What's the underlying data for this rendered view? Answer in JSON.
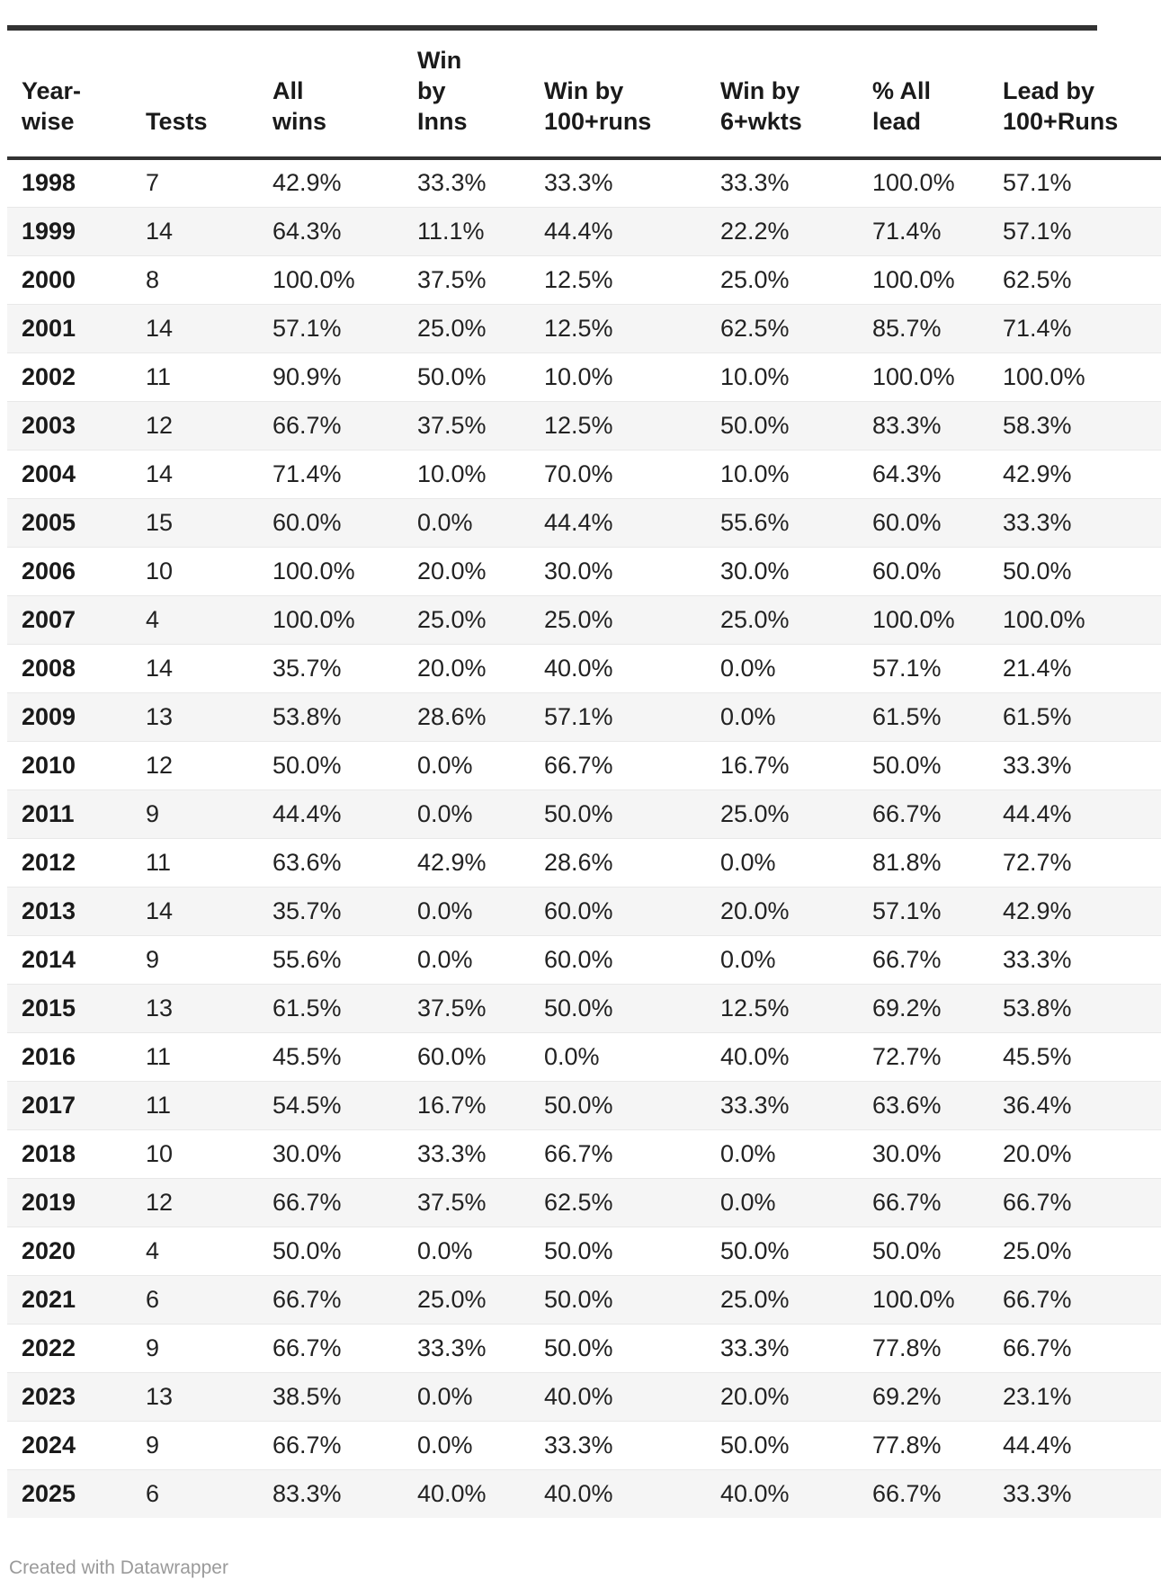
{
  "chart_data": {
    "type": "table",
    "columns": [
      "Year-\nwise",
      "Tests",
      "All\nwins",
      "Win\nby\nInns",
      "Win by\n100+runs",
      "Win by\n6+wkts",
      "% All\nlead",
      "Lead by\n100+Runs"
    ],
    "rows": [
      {
        "year": "1998",
        "values": [
          "7",
          "42.9%",
          "33.3%",
          "33.3%",
          "33.3%",
          "100.0%",
          "57.1%"
        ]
      },
      {
        "year": "1999",
        "values": [
          "14",
          "64.3%",
          "11.1%",
          "44.4%",
          "22.2%",
          "71.4%",
          "57.1%"
        ]
      },
      {
        "year": "2000",
        "values": [
          "8",
          "100.0%",
          "37.5%",
          "12.5%",
          "25.0%",
          "100.0%",
          "62.5%"
        ]
      },
      {
        "year": "2001",
        "values": [
          "14",
          "57.1%",
          "25.0%",
          "12.5%",
          "62.5%",
          "85.7%",
          "71.4%"
        ]
      },
      {
        "year": "2002",
        "values": [
          "11",
          "90.9%",
          "50.0%",
          "10.0%",
          "10.0%",
          "100.0%",
          "100.0%"
        ]
      },
      {
        "year": "2003",
        "values": [
          "12",
          "66.7%",
          "37.5%",
          "12.5%",
          "50.0%",
          "83.3%",
          "58.3%"
        ]
      },
      {
        "year": "2004",
        "values": [
          "14",
          "71.4%",
          "10.0%",
          "70.0%",
          "10.0%",
          "64.3%",
          "42.9%"
        ]
      },
      {
        "year": "2005",
        "values": [
          "15",
          "60.0%",
          "0.0%",
          "44.4%",
          "55.6%",
          "60.0%",
          "33.3%"
        ]
      },
      {
        "year": "2006",
        "values": [
          "10",
          "100.0%",
          "20.0%",
          "30.0%",
          "30.0%",
          "60.0%",
          "50.0%"
        ]
      },
      {
        "year": "2007",
        "values": [
          "4",
          "100.0%",
          "25.0%",
          "25.0%",
          "25.0%",
          "100.0%",
          "100.0%"
        ]
      },
      {
        "year": "2008",
        "values": [
          "14",
          "35.7%",
          "20.0%",
          "40.0%",
          "0.0%",
          "57.1%",
          "21.4%"
        ]
      },
      {
        "year": "2009",
        "values": [
          "13",
          "53.8%",
          "28.6%",
          "57.1%",
          "0.0%",
          "61.5%",
          "61.5%"
        ]
      },
      {
        "year": "2010",
        "values": [
          "12",
          "50.0%",
          "0.0%",
          "66.7%",
          "16.7%",
          "50.0%",
          "33.3%"
        ]
      },
      {
        "year": "2011",
        "values": [
          "9",
          "44.4%",
          "0.0%",
          "50.0%",
          "25.0%",
          "66.7%",
          "44.4%"
        ]
      },
      {
        "year": "2012",
        "values": [
          "11",
          "63.6%",
          "42.9%",
          "28.6%",
          "0.0%",
          "81.8%",
          "72.7%"
        ]
      },
      {
        "year": "2013",
        "values": [
          "14",
          "35.7%",
          "0.0%",
          "60.0%",
          "20.0%",
          "57.1%",
          "42.9%"
        ]
      },
      {
        "year": "2014",
        "values": [
          "9",
          "55.6%",
          "0.0%",
          "60.0%",
          "0.0%",
          "66.7%",
          "33.3%"
        ]
      },
      {
        "year": "2015",
        "values": [
          "13",
          "61.5%",
          "37.5%",
          "50.0%",
          "12.5%",
          "69.2%",
          "53.8%"
        ]
      },
      {
        "year": "2016",
        "values": [
          "11",
          "45.5%",
          "60.0%",
          "0.0%",
          "40.0%",
          "72.7%",
          "45.5%"
        ]
      },
      {
        "year": "2017",
        "values": [
          "11",
          "54.5%",
          "16.7%",
          "50.0%",
          "33.3%",
          "63.6%",
          "36.4%"
        ]
      },
      {
        "year": "2018",
        "values": [
          "10",
          "30.0%",
          "33.3%",
          "66.7%",
          "0.0%",
          "30.0%",
          "20.0%"
        ]
      },
      {
        "year": "2019",
        "values": [
          "12",
          "66.7%",
          "37.5%",
          "62.5%",
          "0.0%",
          "66.7%",
          "66.7%"
        ]
      },
      {
        "year": "2020",
        "values": [
          "4",
          "50.0%",
          "0.0%",
          "50.0%",
          "50.0%",
          "50.0%",
          "25.0%"
        ]
      },
      {
        "year": "2021",
        "values": [
          "6",
          "66.7%",
          "25.0%",
          "50.0%",
          "25.0%",
          "100.0%",
          "66.7%"
        ]
      },
      {
        "year": "2022",
        "values": [
          "9",
          "66.7%",
          "33.3%",
          "50.0%",
          "33.3%",
          "77.8%",
          "66.7%"
        ]
      },
      {
        "year": "2023",
        "values": [
          "13",
          "38.5%",
          "0.0%",
          "40.0%",
          "20.0%",
          "69.2%",
          "23.1%"
        ]
      },
      {
        "year": "2024",
        "values": [
          "9",
          "66.7%",
          "0.0%",
          "33.3%",
          "50.0%",
          "77.8%",
          "44.4%"
        ]
      },
      {
        "year": "2025",
        "values": [
          "6",
          "83.3%",
          "40.0%",
          "40.0%",
          "40.0%",
          "66.7%",
          "33.3%"
        ]
      }
    ]
  },
  "footer": {
    "credit": "Created with Datawrapper"
  },
  "colors": {
    "rule": "#333333",
    "stripe": "#f5f5f5",
    "row_border": "#e8e8e8",
    "header_text": "#1a1a1a",
    "body_text": "#222222",
    "credit_text": "#9a9a9a"
  }
}
